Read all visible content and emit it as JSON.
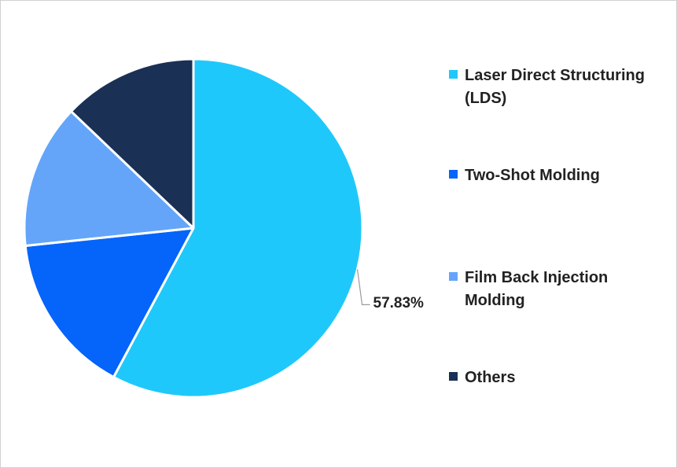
{
  "chart_data": {
    "type": "pie",
    "title": "",
    "legend_position": "right",
    "slices": [
      {
        "label": "Laser Direct Structuring (LDS)",
        "value": 57.83,
        "color": "#1FC8FB",
        "data_label": "57.83%"
      },
      {
        "label": "Two-Shot Molding",
        "value": 15.5,
        "color": "#0564FA",
        "data_label": ""
      },
      {
        "label": "Film Back Injection Molding",
        "value": 13.8,
        "color": "#64A5FA",
        "data_label": ""
      },
      {
        "label": "Others",
        "value": 12.87,
        "color": "#1A3055",
        "data_label": ""
      }
    ]
  }
}
